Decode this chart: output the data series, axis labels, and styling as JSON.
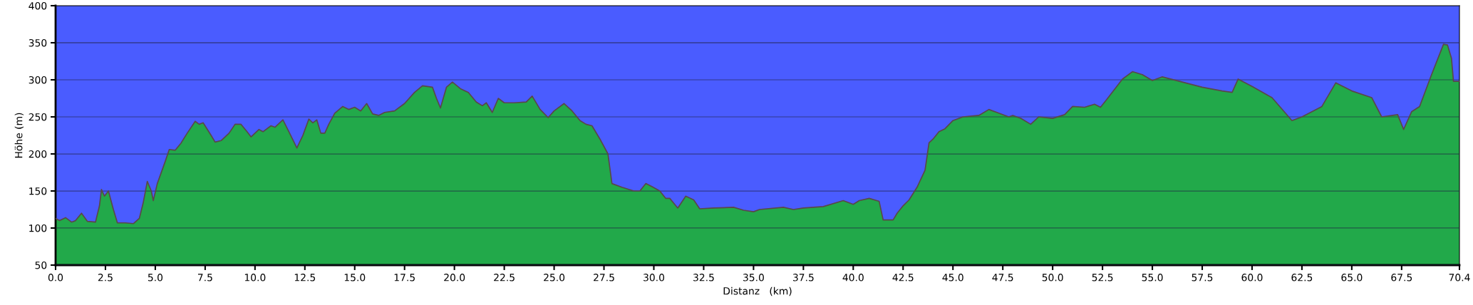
{
  "chart_data": {
    "type": "area",
    "xlabel": "Distanz   (km)",
    "ylabel": "Höhe (m)",
    "xlim": [
      0,
      70.4
    ],
    "ylim": [
      50,
      400
    ],
    "xticks": [
      {
        "value": 0,
        "label": "0.0"
      },
      {
        "value": 2.5,
        "label": "2.5"
      },
      {
        "value": 5,
        "label": "5.0"
      },
      {
        "value": 7.5,
        "label": "7.5"
      },
      {
        "value": 10,
        "label": "10.0"
      },
      {
        "value": 12.5,
        "label": "12.5"
      },
      {
        "value": 15,
        "label": "15.0"
      },
      {
        "value": 17.5,
        "label": "17.5"
      },
      {
        "value": 20,
        "label": "20.0"
      },
      {
        "value": 22.5,
        "label": "22.5"
      },
      {
        "value": 25,
        "label": "25.0"
      },
      {
        "value": 27.5,
        "label": "27.5"
      },
      {
        "value": 30,
        "label": "30.0"
      },
      {
        "value": 32.5,
        "label": "32.5"
      },
      {
        "value": 35,
        "label": "35.0"
      },
      {
        "value": 37.5,
        "label": "37.5"
      },
      {
        "value": 40,
        "label": "40.0"
      },
      {
        "value": 42.5,
        "label": "42.5"
      },
      {
        "value": 45,
        "label": "45.0"
      },
      {
        "value": 47.5,
        "label": "47.5"
      },
      {
        "value": 50,
        "label": "50.0"
      },
      {
        "value": 52.5,
        "label": "52.5"
      },
      {
        "value": 55,
        "label": "55.0"
      },
      {
        "value": 57.5,
        "label": "57.5"
      },
      {
        "value": 60,
        "label": "60.0"
      },
      {
        "value": 62.5,
        "label": "62.5"
      },
      {
        "value": 65,
        "label": "65.0"
      },
      {
        "value": 67.5,
        "label": "67.5"
      },
      {
        "value": 70.4,
        "label": "70.4"
      }
    ],
    "yticks": [
      50,
      100,
      150,
      200,
      250,
      300,
      350,
      400
    ],
    "grid": "y",
    "series": [
      {
        "color": "#22a94a",
        "x": [
          0,
          0.2,
          0.5,
          0.8,
          1.0,
          1.3,
          1.6,
          2.0,
          2.2,
          2.3,
          2.45,
          2.65,
          2.9,
          3.1,
          3.5,
          3.9,
          4.2,
          4.4,
          4.6,
          4.8,
          4.9,
          5.1,
          5.5,
          5.7,
          6.0,
          6.3,
          6.6,
          7.0,
          7.2,
          7.4,
          7.8,
          8.0,
          8.3,
          8.7,
          9.0,
          9.3,
          9.6,
          9.8,
          10.2,
          10.4,
          10.8,
          11.0,
          11.4,
          11.7,
          12.1,
          12.4,
          12.7,
          12.9,
          13.1,
          13.3,
          13.5,
          13.7,
          14.0,
          14.4,
          14.7,
          15.0,
          15.3,
          15.6,
          15.9,
          16.2,
          16.5,
          17.0,
          17.5,
          18.0,
          18.4,
          18.9,
          19.1,
          19.3,
          19.6,
          19.9,
          20.3,
          20.7,
          21.1,
          21.4,
          21.6,
          21.9,
          22.2,
          22.5,
          23.0,
          23.6,
          23.9,
          24.3,
          24.7,
          25.0,
          25.5,
          25.9,
          26.3,
          26.6,
          26.9,
          27.3,
          27.7,
          27.9,
          28.4,
          29.0,
          29.3,
          29.6,
          29.9,
          30.3,
          30.6,
          30.8,
          31.2,
          31.6,
          32.0,
          32.3,
          33.0,
          34.0,
          34.5,
          35.0,
          35.3,
          36.5,
          37.0,
          37.5,
          38.5,
          39.5,
          40.0,
          40.3,
          40.8,
          41.3,
          41.5,
          42.0,
          42.2,
          42.5,
          42.8,
          43.2,
          43.6,
          43.8,
          44.0,
          44.3,
          44.6,
          45.0,
          45.5,
          46.3,
          46.8,
          47.3,
          47.8,
          48.0,
          48.4,
          48.9,
          49.3,
          50.0,
          50.6,
          51.0,
          51.6,
          52.1,
          52.4,
          52.7,
          53.5,
          54.0,
          54.5,
          55.0,
          55.5,
          56.5,
          57.5,
          58.5,
          59.0,
          59.3,
          60.0,
          61.0,
          62.0,
          62.5,
          63.5,
          64.2,
          65.0,
          66.0,
          66.5,
          67.3,
          67.6,
          68.0,
          68.4,
          69.0,
          69.6,
          69.8,
          70.0,
          70.1,
          70.4
        ],
        "values": [
          113,
          110,
          114,
          108,
          110,
          120,
          109,
          108,
          130,
          152,
          143,
          150,
          125,
          107,
          107,
          106,
          113,
          135,
          163,
          150,
          137,
          160,
          190,
          206,
          205,
          215,
          228,
          244,
          240,
          242,
          225,
          216,
          218,
          228,
          240,
          240,
          230,
          223,
          233,
          230,
          238,
          236,
          246,
          230,
          208,
          225,
          247,
          242,
          246,
          228,
          228,
          240,
          255,
          264,
          260,
          263,
          258,
          268,
          254,
          252,
          256,
          258,
          268,
          283,
          292,
          290,
          275,
          262,
          290,
          297,
          288,
          283,
          270,
          265,
          269,
          256,
          275,
          269,
          269,
          270,
          278,
          260,
          249,
          258,
          268,
          258,
          245,
          240,
          238,
          220,
          200,
          160,
          155,
          150,
          150,
          160,
          156,
          150,
          140,
          140,
          127,
          143,
          138,
          126,
          127,
          128,
          124,
          122,
          125,
          128,
          125,
          127,
          129,
          137,
          132,
          137,
          140,
          136,
          111,
          111,
          120,
          130,
          138,
          155,
          178,
          215,
          220,
          230,
          234,
          245,
          250,
          252,
          260,
          255,
          250,
          252,
          248,
          240,
          250,
          248,
          253,
          264,
          263,
          267,
          263,
          273,
          301,
          311,
          307,
          299,
          304,
          297,
          290,
          285,
          283,
          301,
          291,
          276,
          245,
          250,
          264,
          296,
          285,
          276,
          250,
          253,
          233,
          257,
          264,
          307,
          348,
          347,
          329,
          298,
          298
        ]
      }
    ]
  }
}
